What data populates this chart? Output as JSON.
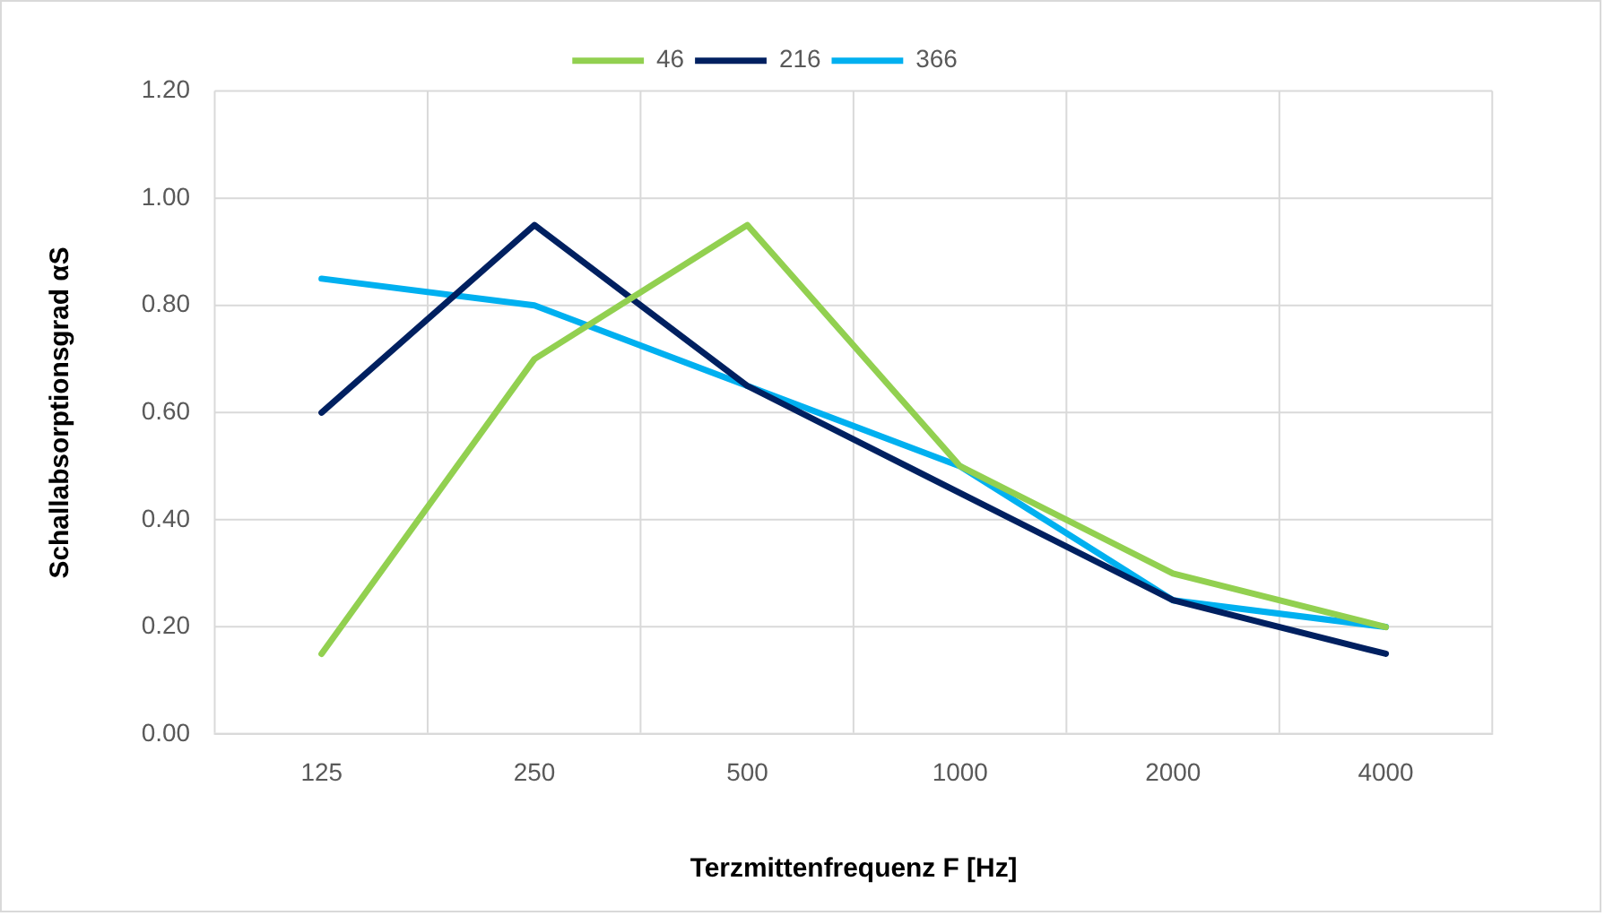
{
  "chart_data": {
    "type": "line",
    "xlabel": "Terzmittenfrequenz F [Hz]",
    "ylabel": "Schallabsorptionsgrad αS",
    "categories": [
      "125",
      "250",
      "500",
      "1000",
      "2000",
      "4000"
    ],
    "series": [
      {
        "name": "46",
        "color": "#92d050",
        "values": [
          0.15,
          0.7,
          0.95,
          0.5,
          0.3,
          0.2
        ]
      },
      {
        "name": "216",
        "color": "#002060",
        "values": [
          0.6,
          0.95,
          0.65,
          0.45,
          0.25,
          0.15
        ]
      },
      {
        "name": "366",
        "color": "#00b0f0",
        "values": [
          0.85,
          0.8,
          0.65,
          0.5,
          0.25,
          0.2
        ]
      }
    ],
    "ylim": [
      0,
      1.2
    ],
    "yticks": [
      {
        "value": 0,
        "label": "0.00"
      },
      {
        "value": 0.2,
        "label": "0.20"
      },
      {
        "value": 0.4,
        "label": "0.40"
      },
      {
        "value": 0.6,
        "label": "0.60"
      },
      {
        "value": 0.8,
        "label": "0.80"
      },
      {
        "value": 1.0,
        "label": "1.00"
      },
      {
        "value": 1.2,
        "label": "1.20"
      }
    ],
    "grid": true,
    "legend": "top",
    "marker": "none",
    "line_style": "solid"
  }
}
